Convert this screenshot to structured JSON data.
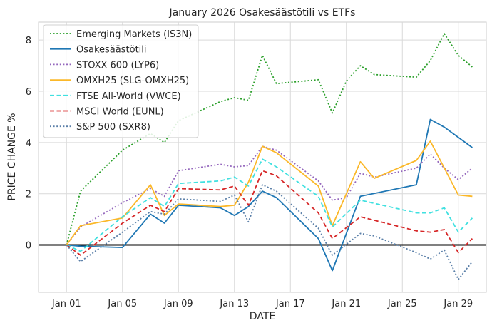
{
  "chart_data": {
    "type": "line",
    "title": "January 2026 Osakesäästötili vs ETFs",
    "xlabel": "DATE",
    "ylabel": "PRICE CHANGE %",
    "xlim": [
      "2025-12-30",
      "2026-01-31"
    ],
    "ylim": [
      -1.85,
      8.7
    ],
    "x_ticks": [
      "2026-01-01",
      "2026-01-05",
      "2026-01-09",
      "2026-01-13",
      "2026-01-17",
      "2026-01-21",
      "2026-01-25",
      "2026-01-29"
    ],
    "x_tick_labels": [
      "Jan 01",
      "Jan 05",
      "Jan 09",
      "Jan 13",
      "Jan 17",
      "Jan 21",
      "Jan 25",
      "Jan 29"
    ],
    "y_ticks": [
      0,
      2,
      4,
      6,
      8
    ],
    "y_tick_labels": [
      "0",
      "2",
      "4",
      "6",
      "8"
    ],
    "grid": true,
    "legend_position": "top-left",
    "zero_line": true,
    "series": [
      {
        "name": "Emerging Markets (IS3N)",
        "color": "#2ca02c",
        "dash": "dotted",
        "x": [
          "2026-01-01",
          "2026-01-02",
          "2026-01-05",
          "2026-01-07",
          "2026-01-08",
          "2026-01-09",
          "2026-01-12",
          "2026-01-13",
          "2026-01-14",
          "2026-01-15",
          "2026-01-16",
          "2026-01-19",
          "2026-01-20",
          "2026-01-21",
          "2026-01-22",
          "2026-01-23",
          "2026-01-26",
          "2026-01-27",
          "2026-01-28",
          "2026-01-29",
          "2026-01-30"
        ],
        "values": [
          0.0,
          2.1,
          3.7,
          4.35,
          4.0,
          4.85,
          5.6,
          5.75,
          5.65,
          7.4,
          6.3,
          6.45,
          5.15,
          6.4,
          7.0,
          6.65,
          6.55,
          7.2,
          8.25,
          7.4,
          6.95
        ]
      },
      {
        "name": "Osakesäästötili",
        "color": "#1f77b4",
        "dash": "solid",
        "x": [
          "2026-01-01",
          "2026-01-02",
          "2026-01-05",
          "2026-01-07",
          "2026-01-08",
          "2026-01-09",
          "2026-01-12",
          "2026-01-13",
          "2026-01-14",
          "2026-01-15",
          "2026-01-16",
          "2026-01-19",
          "2026-01-20",
          "2026-01-22",
          "2026-01-26",
          "2026-01-27",
          "2026-01-28",
          "2026-01-30"
        ],
        "values": [
          0.0,
          -0.05,
          -0.1,
          1.2,
          0.85,
          1.55,
          1.45,
          1.15,
          1.5,
          2.1,
          1.85,
          0.25,
          -1.0,
          1.9,
          2.35,
          4.9,
          4.6,
          3.8
        ]
      },
      {
        "name": "STOXX 600 (LYP6)",
        "color": "#9467bd",
        "dash": "dotted",
        "x": [
          "2026-01-01",
          "2026-01-02",
          "2026-01-05",
          "2026-01-07",
          "2026-01-08",
          "2026-01-09",
          "2026-01-12",
          "2026-01-13",
          "2026-01-14",
          "2026-01-15",
          "2026-01-16",
          "2026-01-19",
          "2026-01-20",
          "2026-01-21",
          "2026-01-22",
          "2026-01-23",
          "2026-01-26",
          "2026-01-27",
          "2026-01-28",
          "2026-01-29",
          "2026-01-30"
        ],
        "values": [
          0.0,
          0.7,
          1.65,
          2.2,
          1.9,
          2.9,
          3.15,
          3.05,
          3.1,
          3.85,
          3.7,
          2.5,
          1.75,
          1.85,
          2.8,
          2.65,
          3.0,
          3.55,
          3.0,
          2.55,
          3.0
        ]
      },
      {
        "name": "OMXH25 (SLG-OMXH25)",
        "color": "#fbb829",
        "dash": "solid",
        "x": [
          "2026-01-01",
          "2026-01-02",
          "2026-01-05",
          "2026-01-07",
          "2026-01-08",
          "2026-01-09",
          "2026-01-12",
          "2026-01-13",
          "2026-01-14",
          "2026-01-15",
          "2026-01-16",
          "2026-01-19",
          "2026-01-20",
          "2026-01-22",
          "2026-01-23",
          "2026-01-26",
          "2026-01-27",
          "2026-01-29",
          "2026-01-30"
        ],
        "values": [
          0.0,
          0.75,
          1.05,
          2.35,
          1.15,
          1.6,
          1.5,
          1.55,
          2.45,
          3.85,
          3.6,
          2.3,
          0.75,
          3.25,
          2.6,
          3.3,
          4.05,
          1.95,
          1.9
        ]
      },
      {
        "name": "FTSE All-World (VWCE)",
        "color": "#40e0e0",
        "dash": "dashed",
        "x": [
          "2026-01-01",
          "2026-01-02",
          "2026-01-05",
          "2026-01-07",
          "2026-01-08",
          "2026-01-09",
          "2026-01-12",
          "2026-01-13",
          "2026-01-14",
          "2026-01-15",
          "2026-01-16",
          "2026-01-19",
          "2026-01-20",
          "2026-01-22",
          "2026-01-26",
          "2026-01-27",
          "2026-01-28",
          "2026-01-29",
          "2026-01-30"
        ],
        "values": [
          0.0,
          -0.25,
          1.1,
          1.85,
          1.5,
          2.4,
          2.5,
          2.65,
          2.3,
          3.35,
          3.05,
          1.9,
          0.7,
          1.75,
          1.25,
          1.25,
          1.45,
          0.5,
          1.05
        ]
      },
      {
        "name": "MSCI World (EUNL)",
        "color": "#d62728",
        "dash": "dashed",
        "x": [
          "2026-01-01",
          "2026-01-02",
          "2026-01-05",
          "2026-01-07",
          "2026-01-08",
          "2026-01-09",
          "2026-01-12",
          "2026-01-13",
          "2026-01-14",
          "2026-01-15",
          "2026-01-16",
          "2026-01-19",
          "2026-01-20",
          "2026-01-22",
          "2026-01-26",
          "2026-01-27",
          "2026-01-28",
          "2026-01-29",
          "2026-01-30"
        ],
        "values": [
          0.0,
          -0.4,
          0.85,
          1.55,
          1.3,
          2.2,
          2.15,
          2.3,
          1.55,
          2.9,
          2.7,
          1.25,
          0.25,
          1.1,
          0.55,
          0.5,
          0.6,
          -0.3,
          0.25
        ]
      },
      {
        "name": "S&P 500 (SXR8)",
        "color": "#5a7fa8",
        "dash": "dotted",
        "x": [
          "2026-01-01",
          "2026-01-02",
          "2026-01-05",
          "2026-01-07",
          "2026-01-08",
          "2026-01-09",
          "2026-01-12",
          "2026-01-13",
          "2026-01-14",
          "2026-01-15",
          "2026-01-16",
          "2026-01-19",
          "2026-01-20",
          "2026-01-22",
          "2026-01-23",
          "2026-01-26",
          "2026-01-27",
          "2026-01-28",
          "2026-01-29",
          "2026-01-30"
        ],
        "values": [
          0.0,
          -0.65,
          0.5,
          1.3,
          1.2,
          1.8,
          1.7,
          1.95,
          0.9,
          2.35,
          2.1,
          0.65,
          -0.4,
          0.45,
          0.35,
          -0.3,
          -0.55,
          -0.2,
          -1.35,
          -0.65
        ]
      }
    ]
  }
}
